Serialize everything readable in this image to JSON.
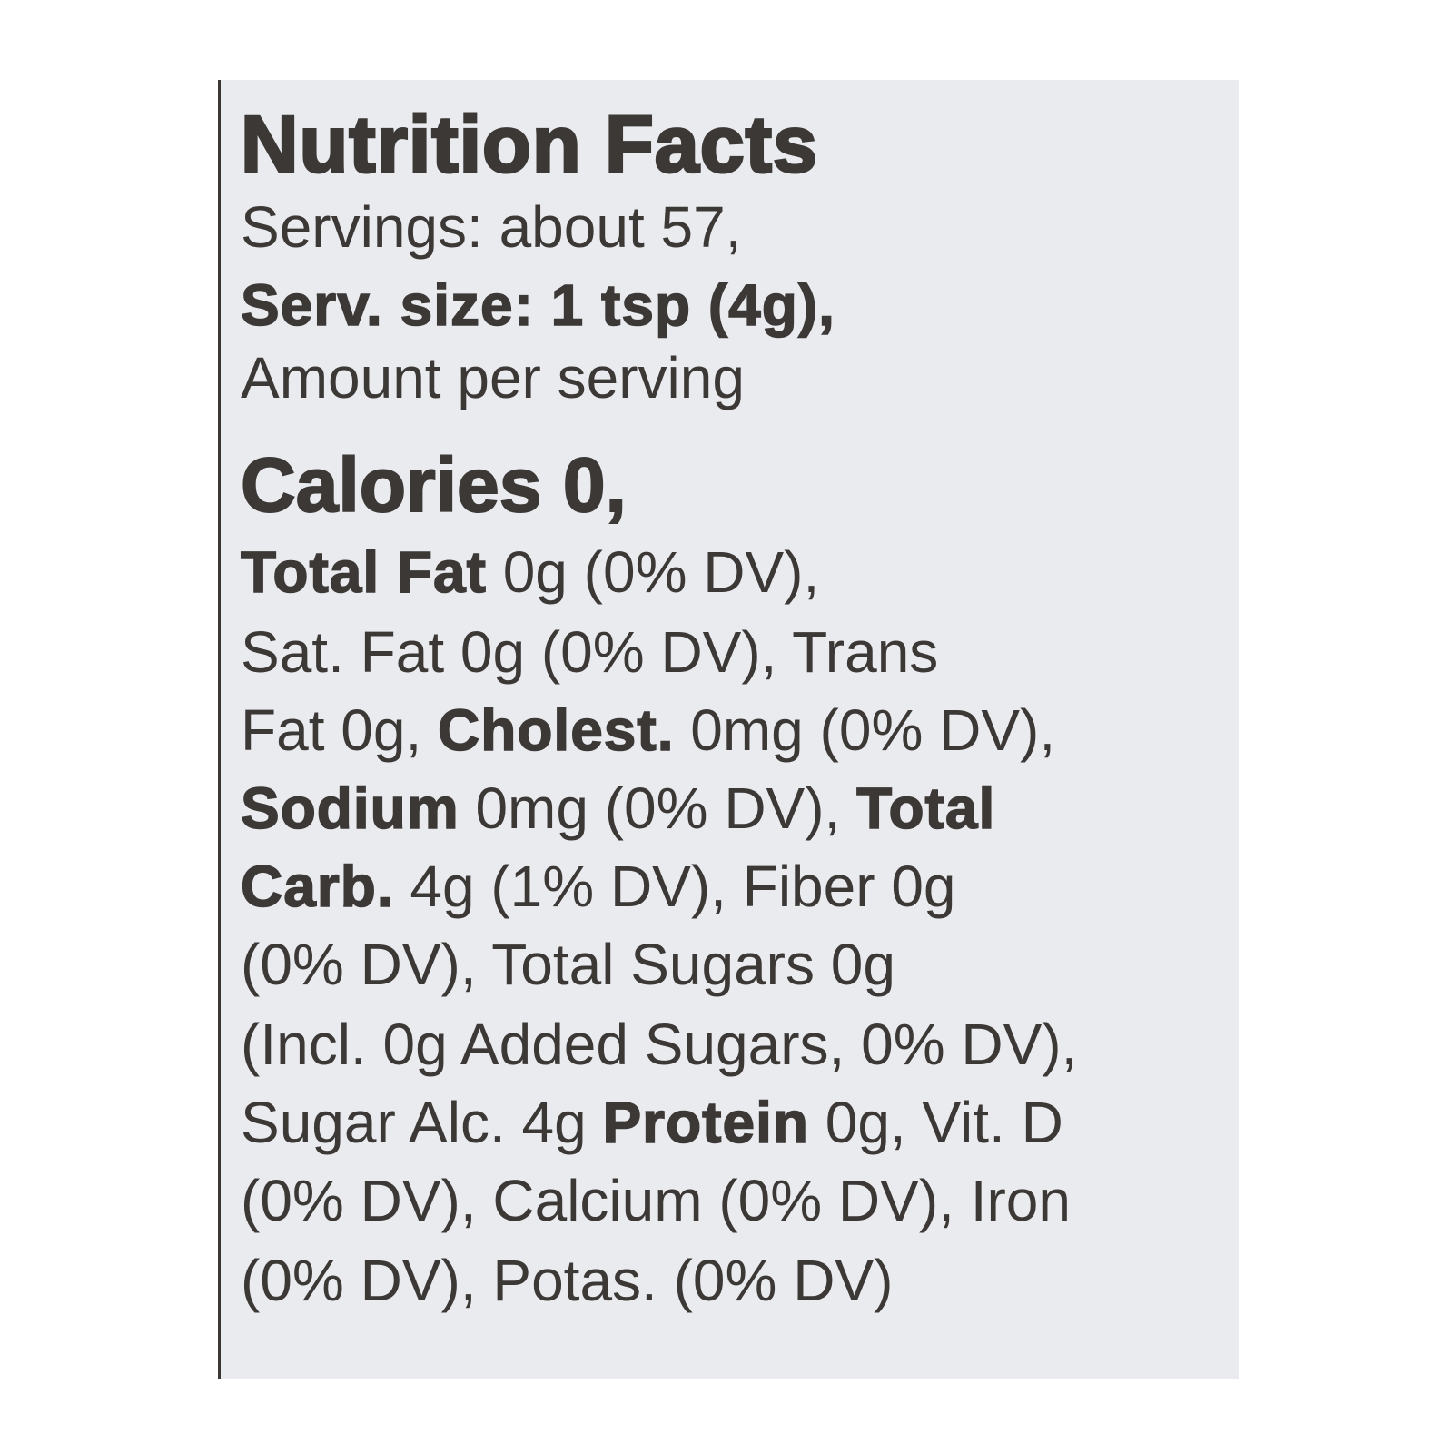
{
  "label": {
    "title": "Nutrition Facts",
    "servings": "Servings: about 57,",
    "serving_size": "Serv. size: 1 tsp (4g),",
    "amount_per_serving": "Amount per serving",
    "calories": "Calories 0,",
    "lines": [
      {
        "seg": [
          {
            "bold": "Total Fat"
          },
          {
            "text": " 0g (0% DV),"
          }
        ]
      },
      {
        "seg": [
          {
            "text": "Sat. Fat 0g (0% DV), Trans"
          }
        ]
      },
      {
        "seg": [
          {
            "text": "Fat 0g, "
          },
          {
            "bold": "Cholest."
          },
          {
            "text": " 0mg (0% DV),"
          }
        ]
      },
      {
        "seg": [
          {
            "bold": "Sodium"
          },
          {
            "text": " 0mg (0% DV), "
          },
          {
            "bold": "Total"
          }
        ]
      },
      {
        "seg": [
          {
            "bold": "Carb."
          },
          {
            "text": " 4g (1% DV), Fiber 0g"
          }
        ]
      },
      {
        "seg": [
          {
            "text": "(0% DV), Total Sugars 0g"
          }
        ]
      },
      {
        "seg": [
          {
            "text": "(Incl. 0g Added Sugars, 0% DV),"
          }
        ]
      },
      {
        "seg": [
          {
            "text": "Sugar Alc. 4g "
          },
          {
            "bold": "Protein"
          },
          {
            "text": " 0g, Vit. D"
          }
        ]
      },
      {
        "seg": [
          {
            "text": "(0% DV), Calcium (0% DV), Iron"
          }
        ]
      },
      {
        "seg": [
          {
            "text": "(0% DV), Potas. (0% DV)"
          }
        ]
      }
    ]
  }
}
